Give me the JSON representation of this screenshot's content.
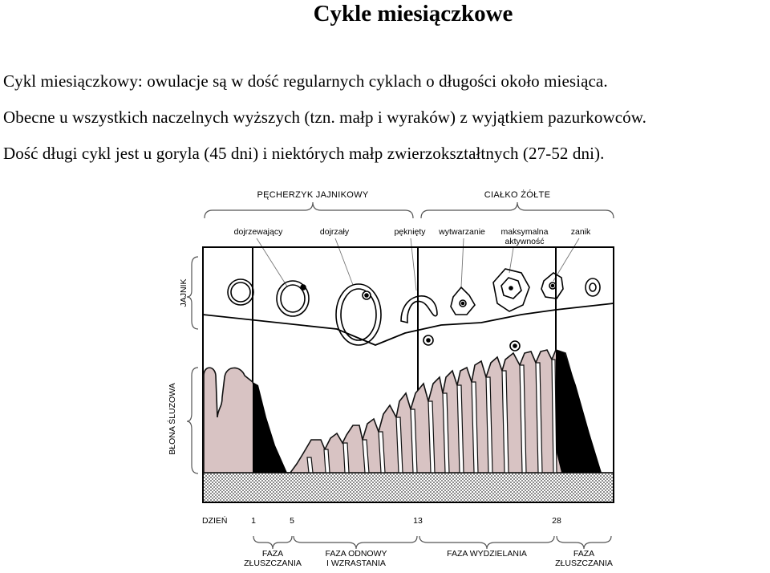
{
  "title": "Cykle miesiączkowe",
  "paragraphs": [
    "Cykl miesiączkowy: owulacje są w dość regularnych cyklach o długości około miesiąca.",
    "Obecne u wszystkich naczelnych wyższych (tzn. małp i wyraków) z wyjątkiem pazurkowców.",
    "Dość długi cykl jest u goryla (45 dni) i niektórych małp zwierzokształtnych (27-52 dni)."
  ],
  "diagram": {
    "top_groups": [
      "PĘCHERZYK JAJNIKOWY",
      "CIAŁKO ŻÓŁTE"
    ],
    "stages": [
      "dojrzewający",
      "dojrzały",
      "pęknięty",
      "wytwarzanie",
      "maksymalna",
      "aktywność",
      "zanik"
    ],
    "side_labels": [
      "JAJNIK",
      "BŁONA ŚLUZOWA"
    ],
    "day_label": "DZIEŃ",
    "days": [
      "1",
      "5",
      "13",
      "28"
    ],
    "phases": [
      {
        "line1": "FAZA",
        "line2": "ZŁUSZCZANIA"
      },
      {
        "line1": "FAZA ODNOWY",
        "line2": "I WZRASTANIA"
      },
      {
        "line1": "FAZA WYDZIELANIA",
        "line2": ""
      },
      {
        "line1": "FAZA",
        "line2": "ZŁUSZCZANIA"
      }
    ],
    "colors": {
      "mucosa": "#d8c3c3",
      "shed": "#000000",
      "base_hatch": "#9a9a9a"
    }
  }
}
